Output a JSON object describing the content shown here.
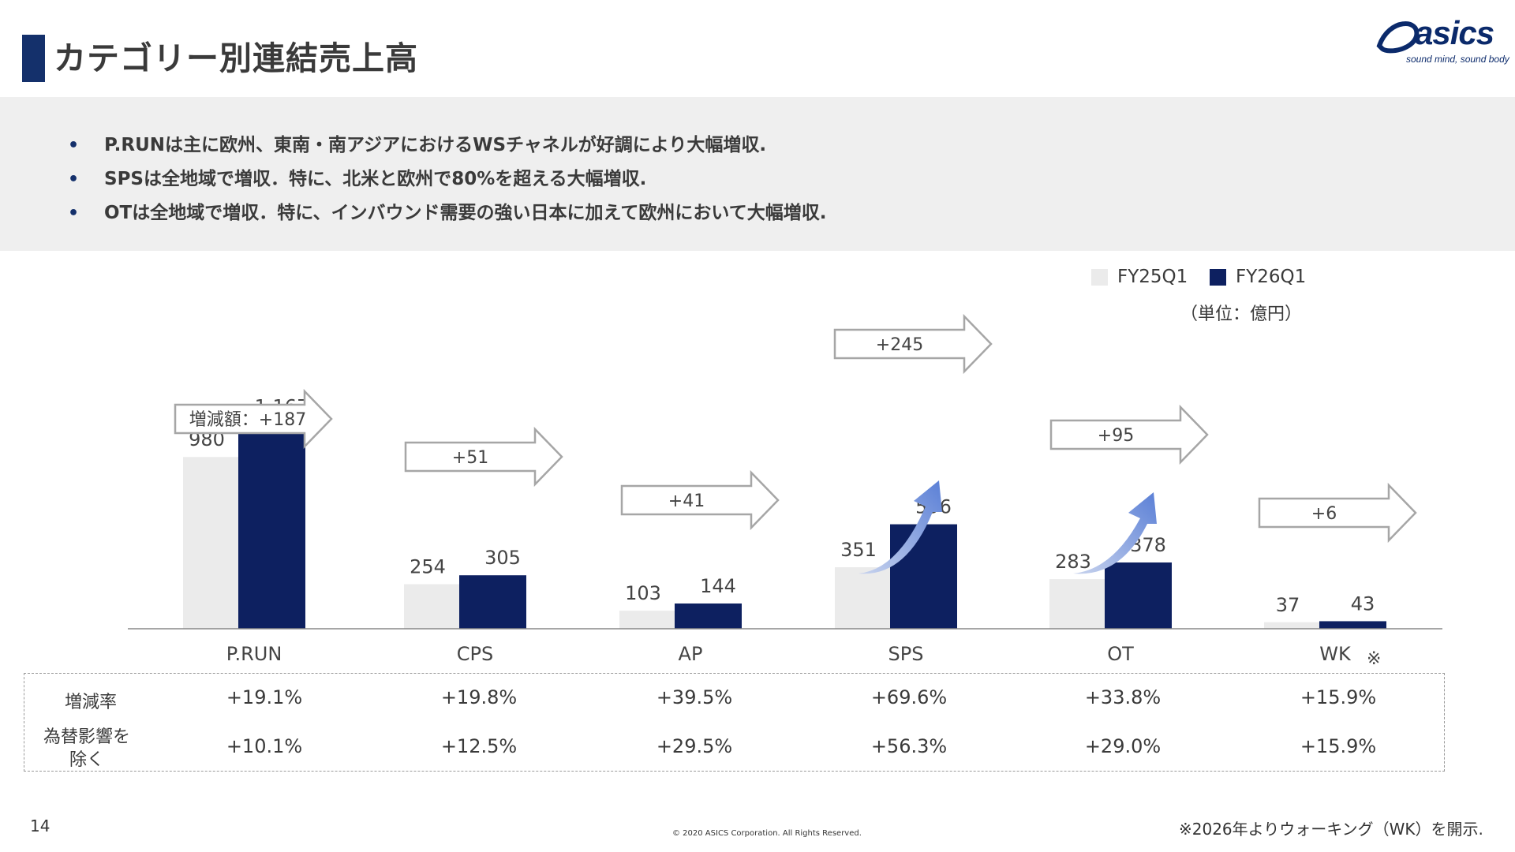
{
  "header": {
    "title": "カテゴリー別連結売上高",
    "logo_text": "asics",
    "logo_tagline": "sound mind, sound body"
  },
  "summary": {
    "bullets": [
      "P.RUNは主に欧州、東南・南アジアにおけるWSチャネルが好調により大幅増収.",
      "SPSは全地域で増収．特に、北米と欧州で80%を超える大幅増収.",
      "OTは全地域で増収．特に、インバウンド需要の強い日本に加えて欧州において大幅増収."
    ]
  },
  "chart_data": {
    "type": "bar",
    "categories": [
      "P.RUN",
      "CPS",
      "AP",
      "SPS",
      "OT",
      "WK"
    ],
    "category_suffix": [
      "",
      "",
      "",
      "",
      "",
      "※"
    ],
    "series": [
      {
        "name": "FY25Q1",
        "color": "#ebebeb",
        "values": [
          980,
          254,
          103,
          351,
          283,
          37
        ],
        "labels": [
          "980",
          "254",
          "103",
          "351",
          "283",
          "37"
        ]
      },
      {
        "name": "FY26Q1",
        "color": "#0d2060",
        "values": [
          1167,
          305,
          144,
          596,
          378,
          43
        ],
        "labels": [
          "1,167",
          "305",
          "144",
          "596",
          "378",
          "43"
        ]
      }
    ],
    "ylim": [
      0,
      1250
    ],
    "unit": "（単位：億円）",
    "change_labels": [
      "+187",
      "+51",
      "+41",
      "+245",
      "+95",
      "+6"
    ],
    "change_prefix": "増減額：",
    "growth_arrows_on": [
      "SPS",
      "OT"
    ]
  },
  "growth_table": {
    "rows": [
      {
        "label": "増減率",
        "values": [
          "+19.1%",
          "+19.8%",
          "+39.5%",
          "+69.6%",
          "+33.8%",
          "+15.9%"
        ]
      },
      {
        "label": "為替影響を除く",
        "values": [
          "+10.1%",
          "+12.5%",
          "+29.5%",
          "+56.3%",
          "+29.0%",
          "+15.9%"
        ]
      }
    ]
  },
  "footer": {
    "page_number": "14",
    "copyright": "© 2020 ASICS Corporation. All Rights Reserved.",
    "footnote": "※2026年よりウォーキング（WK）を開示."
  }
}
